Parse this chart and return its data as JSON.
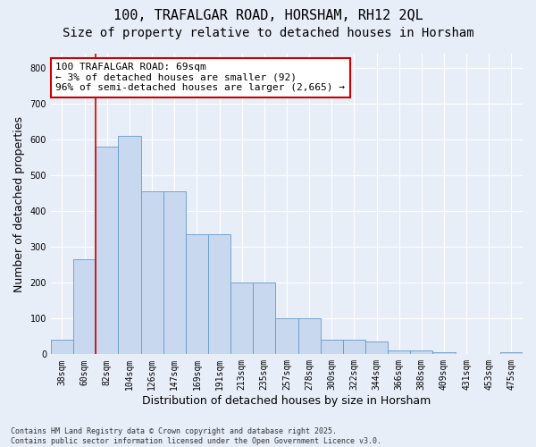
{
  "title1": "100, TRAFALGAR ROAD, HORSHAM, RH12 2QL",
  "title2": "Size of property relative to detached houses in Horsham",
  "xlabel": "Distribution of detached houses by size in Horsham",
  "ylabel": "Number of detached properties",
  "categories": [
    "38sqm",
    "60sqm",
    "82sqm",
    "104sqm",
    "126sqm",
    "147sqm",
    "169sqm",
    "191sqm",
    "213sqm",
    "235sqm",
    "257sqm",
    "278sqm",
    "300sqm",
    "322sqm",
    "344sqm",
    "366sqm",
    "388sqm",
    "409sqm",
    "431sqm",
    "453sqm",
    "475sqm"
  ],
  "bar_heights": [
    40,
    265,
    580,
    610,
    455,
    455,
    335,
    335,
    200,
    200,
    100,
    100,
    42,
    42,
    35,
    12,
    10,
    5,
    2,
    1,
    7
  ],
  "bar_color": "#c8d8ee",
  "bar_edge_color": "#6699cc",
  "annotation_box_text": "100 TRAFALGAR ROAD: 69sqm\n← 3% of detached houses are smaller (92)\n96% of semi-detached houses are larger (2,665) →",
  "vline_x": 1.5,
  "vline_color": "#cc0000",
  "box_edge_color": "#cc0000",
  "bg_color": "#e8eef8",
  "grid_color": "#ffffff",
  "ylim": [
    0,
    840
  ],
  "yticks": [
    0,
    100,
    200,
    300,
    400,
    500,
    600,
    700,
    800
  ],
  "footnote": "Contains HM Land Registry data © Crown copyright and database right 2025.\nContains public sector information licensed under the Open Government Licence v3.0.",
  "title_fontsize": 11,
  "subtitle_fontsize": 10,
  "tick_fontsize": 7,
  "label_fontsize": 9,
  "footnote_fontsize": 6
}
